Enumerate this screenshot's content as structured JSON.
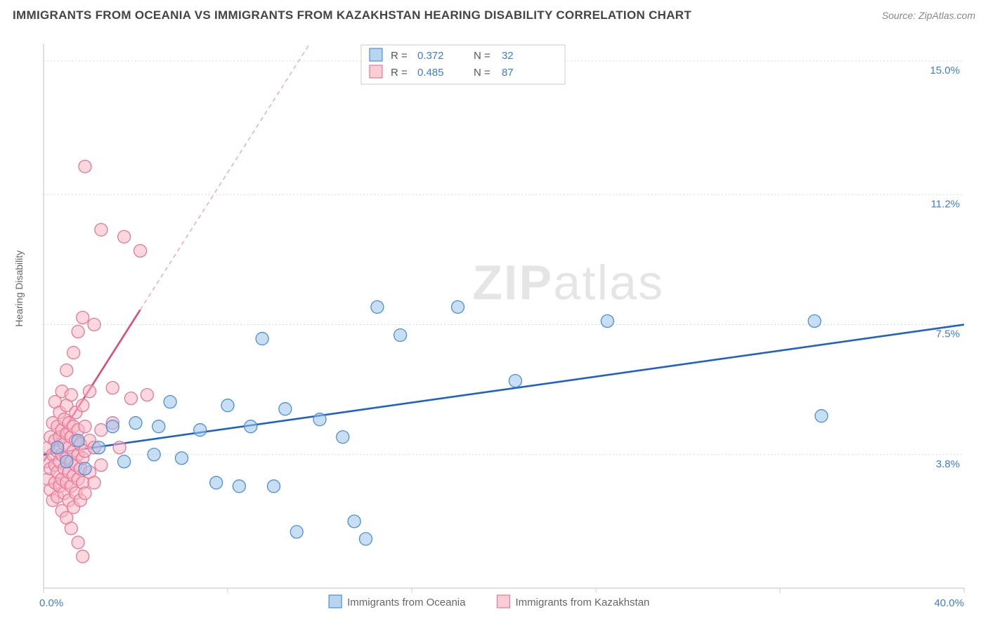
{
  "title": "IMMIGRANTS FROM OCEANIA VS IMMIGRANTS FROM KAZAKHSTAN HEARING DISABILITY CORRELATION CHART",
  "source_label": "Source: ",
  "source_name": "ZipAtlas.com",
  "y_axis_title": "Hearing Disability",
  "watermark_a": "ZIP",
  "watermark_b": "atlas",
  "chart": {
    "xlim": [
      0,
      40
    ],
    "ylim": [
      0,
      15.5
    ],
    "x_ticks": [
      0,
      8,
      16,
      24,
      32,
      40
    ],
    "y_grid": [
      3.8,
      7.5,
      11.2,
      15.0
    ],
    "x_labels": {
      "min": "0.0%",
      "max": "40.0%"
    },
    "y_labels": [
      "3.8%",
      "7.5%",
      "11.2%",
      "15.0%"
    ],
    "plot_bg": "#ffffff",
    "grid_color": "#d8d8d8",
    "axis_color": "#cccccc",
    "marker_radius": 9
  },
  "legend_top": {
    "rows": [
      {
        "swatch": "blue",
        "r_label": "R =",
        "r_val": "0.372",
        "n_label": "N =",
        "n_val": "32"
      },
      {
        "swatch": "pink",
        "r_label": "R =",
        "r_val": "0.485",
        "n_label": "N =",
        "n_val": "87"
      }
    ]
  },
  "legend_bottom": [
    {
      "swatch": "blue",
      "label": "Immigrants from Oceania"
    },
    {
      "swatch": "pink",
      "label": "Immigrants from Kazakhstan"
    }
  ],
  "series": {
    "oceania": {
      "color_fill": "#9ac3ea",
      "color_stroke": "#4a90d9",
      "trend_color": "#1e62c9",
      "trend": {
        "x1": 0,
        "y1": 3.8,
        "x2": 40,
        "y2": 7.5,
        "solid_until_x": 40
      },
      "points": [
        [
          0.6,
          4.0
        ],
        [
          1.0,
          3.6
        ],
        [
          1.5,
          4.2
        ],
        [
          1.8,
          3.4
        ],
        [
          2.4,
          4.0
        ],
        [
          3.0,
          4.6
        ],
        [
          3.5,
          3.6
        ],
        [
          4.0,
          4.7
        ],
        [
          4.8,
          3.8
        ],
        [
          5.0,
          4.6
        ],
        [
          5.5,
          5.3
        ],
        [
          6.0,
          3.7
        ],
        [
          6.8,
          4.5
        ],
        [
          7.5,
          3.0
        ],
        [
          8.0,
          5.2
        ],
        [
          8.5,
          2.9
        ],
        [
          9.0,
          4.6
        ],
        [
          9.5,
          7.1
        ],
        [
          10.0,
          2.9
        ],
        [
          10.5,
          5.1
        ],
        [
          11.0,
          1.6
        ],
        [
          12.0,
          4.8
        ],
        [
          13.0,
          4.3
        ],
        [
          13.5,
          1.9
        ],
        [
          14.0,
          1.4
        ],
        [
          14.5,
          8.0
        ],
        [
          15.5,
          7.2
        ],
        [
          18.0,
          8.0
        ],
        [
          20.5,
          5.9
        ],
        [
          24.5,
          7.6
        ],
        [
          33.5,
          7.6
        ],
        [
          33.8,
          4.9
        ]
      ]
    },
    "kazakhstan": {
      "color_fill": "#f7b6c5",
      "color_stroke": "#e97795",
      "trend_color": "#e04a76",
      "trend": {
        "x1": 0,
        "y1": 3.6,
        "x2": 14,
        "y2": 18.0,
        "solid_until_x": 4.2
      },
      "points": [
        [
          0.1,
          3.6
        ],
        [
          0.2,
          3.1
        ],
        [
          0.2,
          4.0
        ],
        [
          0.3,
          2.8
        ],
        [
          0.3,
          3.4
        ],
        [
          0.3,
          4.3
        ],
        [
          0.4,
          2.5
        ],
        [
          0.4,
          3.8
        ],
        [
          0.4,
          4.7
        ],
        [
          0.5,
          3.0
        ],
        [
          0.5,
          3.5
        ],
        [
          0.5,
          4.2
        ],
        [
          0.5,
          5.3
        ],
        [
          0.6,
          2.6
        ],
        [
          0.6,
          3.3
        ],
        [
          0.6,
          3.9
        ],
        [
          0.6,
          4.6
        ],
        [
          0.7,
          2.9
        ],
        [
          0.7,
          3.6
        ],
        [
          0.7,
          4.3
        ],
        [
          0.7,
          5.0
        ],
        [
          0.8,
          2.2
        ],
        [
          0.8,
          3.1
        ],
        [
          0.8,
          3.8
        ],
        [
          0.8,
          4.5
        ],
        [
          0.8,
          5.6
        ],
        [
          0.9,
          2.7
        ],
        [
          0.9,
          3.4
        ],
        [
          0.9,
          4.1
        ],
        [
          0.9,
          4.8
        ],
        [
          1.0,
          2.0
        ],
        [
          1.0,
          3.0
        ],
        [
          1.0,
          3.7
        ],
        [
          1.0,
          4.4
        ],
        [
          1.0,
          5.2
        ],
        [
          1.0,
          6.2
        ],
        [
          1.1,
          2.5
        ],
        [
          1.1,
          3.3
        ],
        [
          1.1,
          4.0
        ],
        [
          1.1,
          4.7
        ],
        [
          1.2,
          1.7
        ],
        [
          1.2,
          2.9
        ],
        [
          1.2,
          3.6
        ],
        [
          1.2,
          4.3
        ],
        [
          1.2,
          5.5
        ],
        [
          1.3,
          2.3
        ],
        [
          1.3,
          3.2
        ],
        [
          1.3,
          3.9
        ],
        [
          1.3,
          4.6
        ],
        [
          1.3,
          6.7
        ],
        [
          1.4,
          2.7
        ],
        [
          1.4,
          3.5
        ],
        [
          1.4,
          4.2
        ],
        [
          1.4,
          5.0
        ],
        [
          1.5,
          1.3
        ],
        [
          1.5,
          3.1
        ],
        [
          1.5,
          3.8
        ],
        [
          1.5,
          4.5
        ],
        [
          1.5,
          7.3
        ],
        [
          1.6,
          2.5
        ],
        [
          1.6,
          3.4
        ],
        [
          1.6,
          4.1
        ],
        [
          1.7,
          0.9
        ],
        [
          1.7,
          3.0
        ],
        [
          1.7,
          3.7
        ],
        [
          1.7,
          5.2
        ],
        [
          1.7,
          7.7
        ],
        [
          1.8,
          2.7
        ],
        [
          1.8,
          3.9
        ],
        [
          1.8,
          4.6
        ],
        [
          1.8,
          12.0
        ],
        [
          2.0,
          3.3
        ],
        [
          2.0,
          4.2
        ],
        [
          2.0,
          5.6
        ],
        [
          2.2,
          3.0
        ],
        [
          2.2,
          4.0
        ],
        [
          2.2,
          7.5
        ],
        [
          2.5,
          3.5
        ],
        [
          2.5,
          4.5
        ],
        [
          2.5,
          10.2
        ],
        [
          3.0,
          4.7
        ],
        [
          3.0,
          5.7
        ],
        [
          3.3,
          4.0
        ],
        [
          3.5,
          10.0
        ],
        [
          3.8,
          5.4
        ],
        [
          4.2,
          9.6
        ],
        [
          4.5,
          5.5
        ]
      ]
    }
  }
}
